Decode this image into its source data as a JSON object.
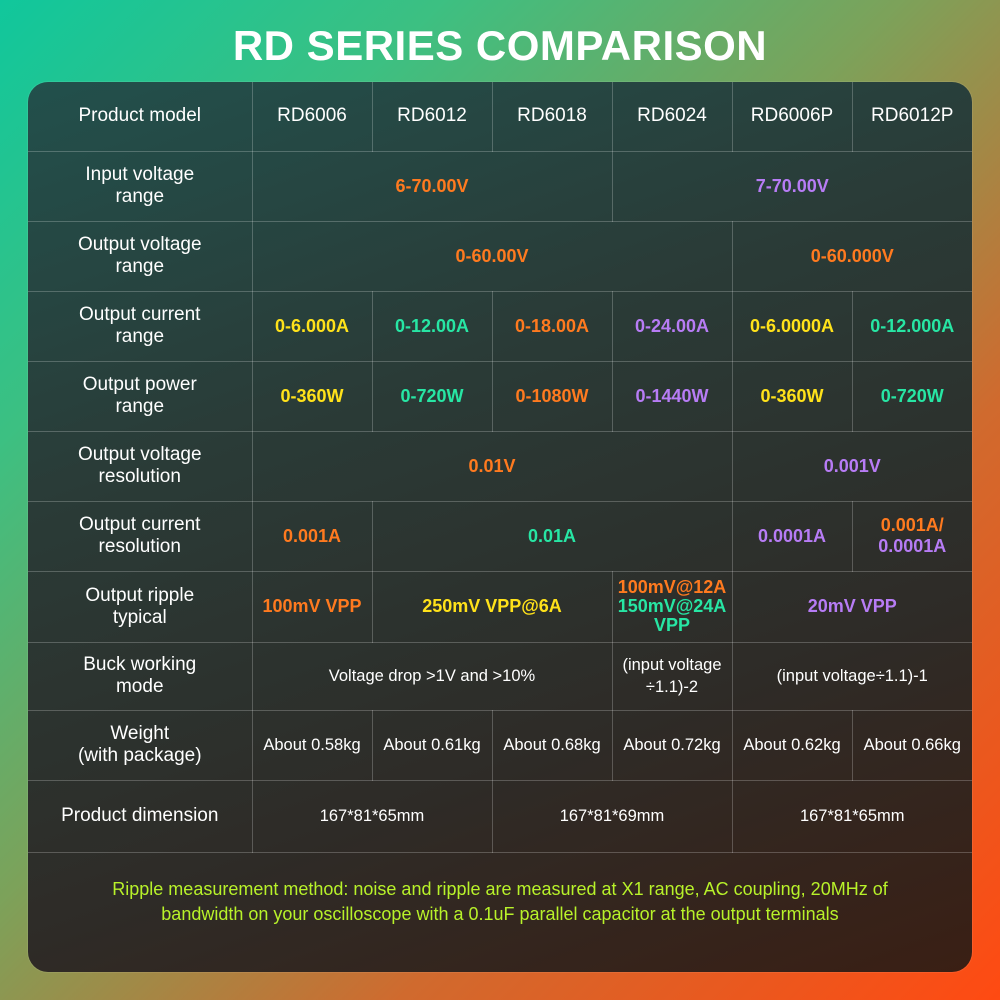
{
  "title": "RD SERIES COMPARISON",
  "colors": {
    "orange": "#ff7a1f",
    "yellow": "#ffe21a",
    "green": "#27e6a4",
    "purple": "#b77cf5",
    "note": "#b8f22a"
  },
  "table": {
    "header": {
      "label": "Product model",
      "models": [
        "RD6006",
        "RD6012",
        "RD6018",
        "RD6024",
        "RD6006P",
        "RD6012P"
      ]
    },
    "input_voltage": {
      "label": "Input voltage\nrange",
      "values": [
        "6-70.00V",
        "7-70.00V"
      ]
    },
    "output_voltage": {
      "label": "Output voltage\nrange",
      "values": [
        "0-60.00V",
        "0-60.000V"
      ]
    },
    "output_current": {
      "label": "Output current\nrange",
      "values": [
        "0-6.000A",
        "0-12.00A",
        "0-18.00A",
        "0-24.00A",
        "0-6.0000A",
        "0-12.000A"
      ]
    },
    "output_power": {
      "label": "Output power\nrange",
      "values": [
        "0-360W",
        "0-720W",
        "0-1080W",
        "0-1440W",
        "0-360W",
        "0-720W"
      ]
    },
    "voltage_resolution": {
      "label": "Output voltage\nresolution",
      "values": [
        "0.01V",
        "0.001V"
      ]
    },
    "current_resolution": {
      "label": "Output current\nresolution",
      "values": [
        "0.001A",
        "0.01A",
        "0.0001A",
        "0.001A/",
        "0.0001A"
      ]
    },
    "ripple": {
      "label": "Output ripple\ntypical",
      "values": [
        "100mV VPP",
        "250mV VPP@6A",
        "100mV@12A",
        "150mV@24A\nVPP",
        "20mV VPP"
      ]
    },
    "buck": {
      "label": "Buck working\nmode",
      "values": [
        "Voltage drop >1V and >10%",
        "(input voltage\n÷1.1)-2",
        "(input voltage÷1.1)-1"
      ]
    },
    "weight": {
      "label": "Weight\n(with package)",
      "values": [
        "About 0.58kg",
        "About 0.61kg",
        "About 0.68kg",
        "About 0.72kg",
        "About 0.62kg",
        "About 0.66kg"
      ]
    },
    "dimension": {
      "label": "Product dimension",
      "values": [
        "167*81*65mm",
        "167*81*69mm",
        "167*81*65mm"
      ]
    }
  },
  "note": "Ripple measurement method:  noise and ripple are measured at X1 range, AC coupling, 20MHz of\nbandwidth on your oscilloscope with a 0.1uF parallel capacitor at the output terminals"
}
